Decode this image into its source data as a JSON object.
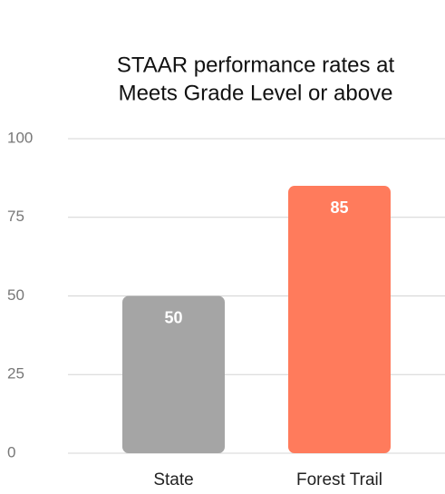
{
  "chart_data": {
    "type": "bar",
    "title": [
      "STAAR performance rates at",
      "Meets Grade Level or above"
    ],
    "categories": [
      "State",
      "Forest Trail"
    ],
    "values": [
      50,
      85
    ],
    "colors": [
      "#a5a5a5",
      "#ff7b5c"
    ],
    "ylim": [
      0,
      100
    ],
    "yticks": [
      0,
      25,
      50,
      75,
      100
    ],
    "grid": true
  }
}
